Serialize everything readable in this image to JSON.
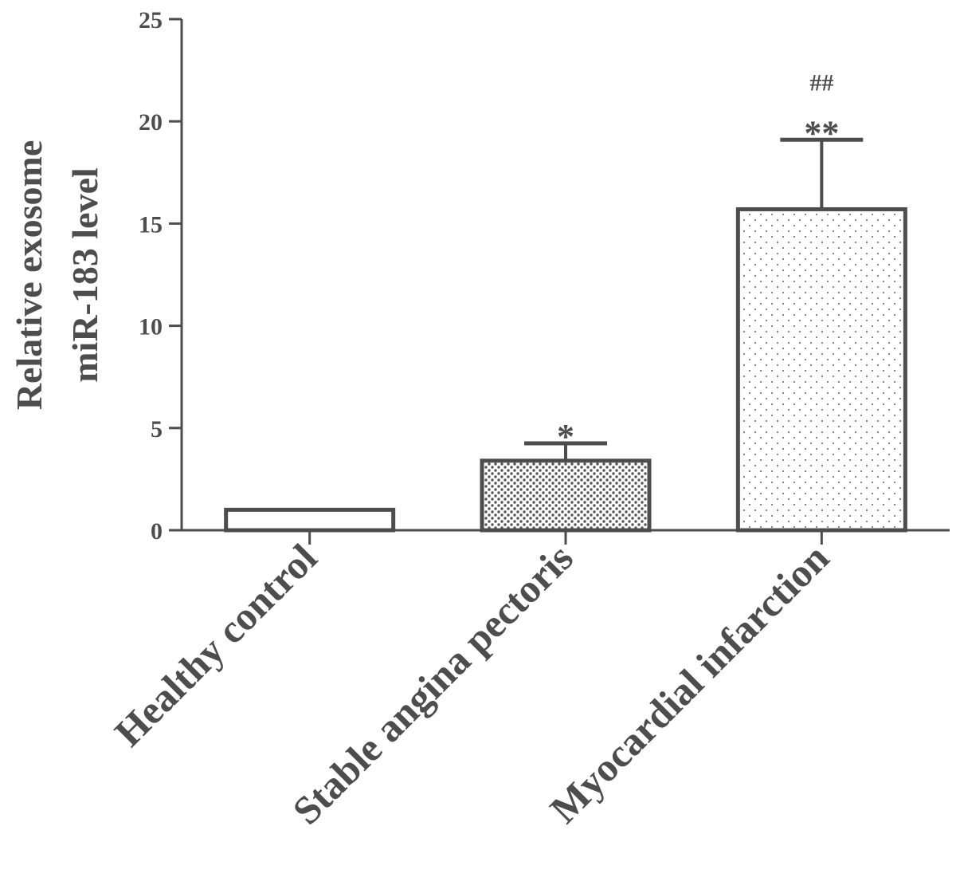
{
  "chart_data": {
    "type": "bar",
    "categories": [
      "Healthy control",
      "Stable angina pectoris",
      "Myocardial infarction"
    ],
    "values": [
      1.0,
      3.4,
      15.7
    ],
    "errors": [
      0,
      0.85,
      3.4
    ],
    "annotations": [
      {
        "category": "Stable angina pectoris",
        "lines": [
          "*"
        ]
      },
      {
        "category": "Myocardial infarction",
        "lines": [
          "##",
          "**"
        ]
      }
    ],
    "patterns": [
      "none",
      "dense-dots",
      "sparse-dots"
    ],
    "ylabel_line1": "Relative exosome",
    "ylabel_line2": "miR-183 level",
    "xlabel": "",
    "ylim": [
      0,
      25
    ],
    "yticks": [
      0,
      5,
      10,
      15,
      20,
      25
    ],
    "grid": false,
    "colors": {
      "axis": "#4d4d4d",
      "bar_edge": "#4d4d4d",
      "bar_fill": "#ffffff"
    }
  }
}
